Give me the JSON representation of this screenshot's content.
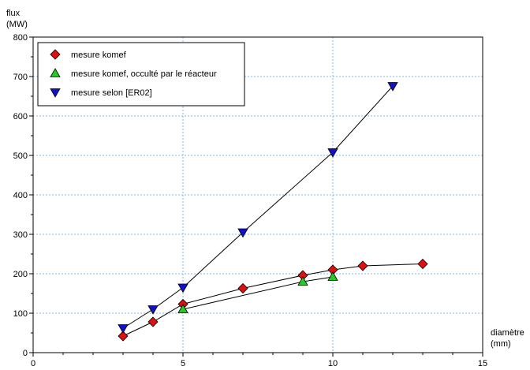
{
  "chart_data": {
    "type": "line",
    "xlabel": "diamètre",
    "xunit": "(mm)",
    "ylabel": "flux",
    "yunit": "(MW)",
    "xlim": [
      0,
      15
    ],
    "ylim": [
      0,
      800
    ],
    "xticks": [
      0,
      5,
      10,
      15
    ],
    "yticks": [
      0,
      100,
      200,
      300,
      400,
      500,
      600,
      700,
      800
    ],
    "grid": true,
    "legend_position": "top-left",
    "series": [
      {
        "name": "mesure komef",
        "marker": "diamond",
        "color": "#dd1111",
        "x": [
          3,
          4,
          5,
          7,
          9,
          10,
          11,
          13
        ],
        "y": [
          42,
          78,
          123,
          163,
          196,
          210,
          220,
          225
        ]
      },
      {
        "name": "mesure komef, occulté par le réacteur",
        "marker": "triangle-up",
        "color": "#22cc22",
        "x": [
          5,
          9,
          10
        ],
        "y": [
          110,
          180,
          192
        ]
      },
      {
        "name": "mesure selon [ER02]",
        "marker": "triangle-down",
        "color": "#1111cc",
        "x": [
          3,
          4,
          5,
          7,
          10,
          12
        ],
        "y": [
          62,
          110,
          165,
          305,
          508,
          676
        ]
      }
    ]
  }
}
